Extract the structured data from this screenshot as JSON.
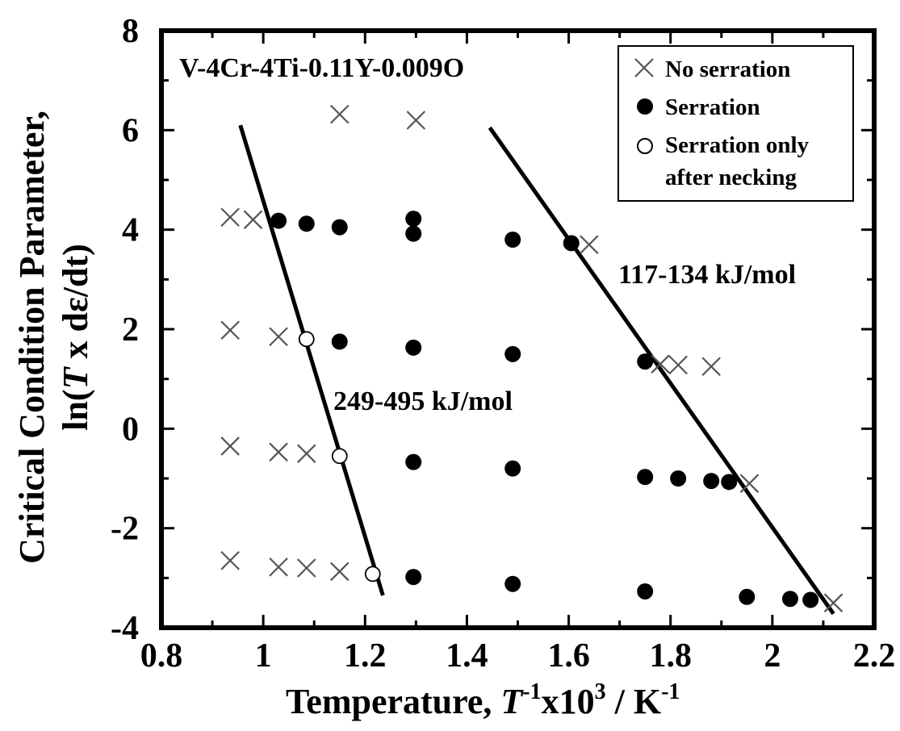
{
  "chart_data": {
    "type": "scatter",
    "title": "",
    "xlabel": {
      "prefix": "Temperature, ",
      "var": "T",
      "sup1": "-1",
      "mid": "x10",
      "sup2": "3",
      "unit": " / K",
      "sup3": "-1"
    },
    "ylabel": {
      "line1": "Critical Condition Parameter,",
      "line2_prefix": "ln(",
      "line2_var": "T",
      "line2_suffix": " x dε/dt)"
    },
    "xlim": [
      0.8,
      2.2
    ],
    "ylim": [
      -4,
      8
    ],
    "x_ticks": [
      "0.8",
      "1",
      "1.2",
      "1.4",
      "1.6",
      "1.8",
      "2",
      "2.2"
    ],
    "y_ticks": [
      "-4",
      "-2",
      "0",
      "2",
      "4",
      "6",
      "8"
    ],
    "legend": {
      "position": "top-right",
      "entries": [
        {
          "name": "No serration",
          "marker": "x"
        },
        {
          "name": "Serration",
          "marker": "filled-circle"
        },
        {
          "name": "Serration only",
          "name2": "after necking",
          "marker": "open-circle"
        }
      ]
    },
    "annotations": {
      "alloy": "V-4Cr-4Ti-0.11Y-0.009O",
      "energy_high": "249-495 kJ/mol",
      "energy_low": "117-134 kJ/mol"
    },
    "series": [
      {
        "name": "No serration",
        "marker": "x",
        "points": [
          [
            0.935,
            4.25
          ],
          [
            0.98,
            4.2
          ],
          [
            1.15,
            6.32
          ],
          [
            1.3,
            6.2
          ],
          [
            1.64,
            3.7
          ],
          [
            1.78,
            1.3
          ],
          [
            1.815,
            1.28
          ],
          [
            1.88,
            1.25
          ],
          [
            0.935,
            1.98
          ],
          [
            1.03,
            1.85
          ],
          [
            0.935,
            -0.35
          ],
          [
            1.03,
            -0.47
          ],
          [
            1.085,
            -0.5
          ],
          [
            1.955,
            -1.1
          ],
          [
            0.935,
            -2.65
          ],
          [
            1.03,
            -2.78
          ],
          [
            1.085,
            -2.8
          ],
          [
            1.15,
            -2.87
          ],
          [
            2.12,
            -3.5
          ]
        ]
      },
      {
        "name": "Serration",
        "marker": "filled-circle",
        "points": [
          [
            1.03,
            4.18
          ],
          [
            1.085,
            4.12
          ],
          [
            1.15,
            4.05
          ],
          [
            1.295,
            4.22
          ],
          [
            1.295,
            3.92
          ],
          [
            1.49,
            3.8
          ],
          [
            1.605,
            3.73
          ],
          [
            1.15,
            1.75
          ],
          [
            1.295,
            1.63
          ],
          [
            1.49,
            1.5
          ],
          [
            1.75,
            1.35
          ],
          [
            1.295,
            -0.67
          ],
          [
            1.49,
            -0.8
          ],
          [
            1.75,
            -0.97
          ],
          [
            1.815,
            -1.0
          ],
          [
            1.88,
            -1.05
          ],
          [
            1.915,
            -1.07
          ],
          [
            1.295,
            -2.98
          ],
          [
            1.49,
            -3.12
          ],
          [
            1.75,
            -3.27
          ],
          [
            1.95,
            -3.38
          ],
          [
            2.035,
            -3.42
          ],
          [
            2.075,
            -3.44
          ]
        ]
      },
      {
        "name": "Serration only after necking",
        "marker": "open-circle",
        "points": [
          [
            1.085,
            1.8
          ],
          [
            1.15,
            -0.55
          ],
          [
            1.215,
            -2.92
          ]
        ]
      }
    ],
    "fit_lines": [
      {
        "label": "249-495 kJ/mol",
        "from": [
          0.955,
          6.1
        ],
        "to": [
          1.235,
          -3.35
        ]
      },
      {
        "label": "117-134 kJ/mol",
        "from": [
          1.445,
          6.05
        ],
        "to": [
          2.12,
          -3.72
        ]
      }
    ]
  }
}
